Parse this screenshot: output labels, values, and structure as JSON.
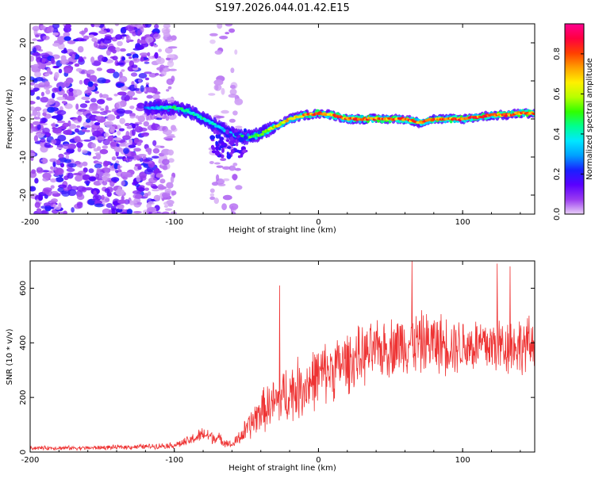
{
  "title": "S197.2026.044.01.42.E15",
  "chart_data": [
    {
      "type": "heatmap",
      "name": "spectrogram",
      "xlabel": "Height of straight line (km)",
      "ylabel": "Frequency (Hz)",
      "xlim": [
        -200,
        150
      ],
      "ylim": [
        -25,
        25
      ],
      "xticks": [
        -200,
        -100,
        0,
        100
      ],
      "yticks": [
        -20,
        -10,
        0,
        10,
        20
      ],
      "colorbar": {
        "label": "Normalized spectral amplitude",
        "range": [
          0,
          0.95
        ],
        "ticks": [
          0.0,
          0.2,
          0.4,
          0.6,
          0.8
        ],
        "colors": [
          "#e9d0f7",
          "#9a3bf0",
          "#5a00ff",
          "#1a20ff",
          "#00a0ff",
          "#00e8ff",
          "#00ff90",
          "#30ff00",
          "#b8ff00",
          "#fff000",
          "#ffa000",
          "#ff4000",
          "#ff0040",
          "#ff0090"
        ]
      },
      "ridge": {
        "x": [
          -120,
          -110,
          -100,
          -90,
          -80,
          -70,
          -60,
          -50,
          -40,
          -30,
          -20,
          -10,
          0,
          10,
          20,
          30,
          40,
          50,
          60,
          70,
          80,
          90,
          100,
          110,
          120,
          130,
          140,
          150
        ],
        "freq": [
          3,
          3,
          3,
          2,
          0,
          -2,
          -4,
          -5,
          -4,
          -2,
          0,
          1,
          1.5,
          1,
          0,
          0,
          0,
          0,
          0,
          -1,
          0,
          0,
          0,
          0.5,
          1,
          1,
          1.5,
          1.5
        ],
        "amp": [
          0.3,
          0.4,
          0.5,
          0.45,
          0.45,
          0.4,
          0.4,
          0.55,
          0.6,
          0.7,
          0.75,
          0.8,
          0.85,
          0.85,
          0.85,
          0.85,
          0.85,
          0.85,
          0.85,
          0.85,
          0.85,
          0.85,
          0.85,
          0.85,
          0.85,
          0.85,
          0.85,
          0.85
        ]
      },
      "noise_regions": [
        {
          "from": -200,
          "to": -110,
          "density": "high"
        },
        {
          "from": -110,
          "to": -100,
          "density": "medium"
        },
        {
          "from": -75,
          "to": -55,
          "density": "low"
        }
      ]
    },
    {
      "type": "line",
      "name": "snr",
      "xlabel": "Height of straight line (km)",
      "ylabel": "SNR (10 * v/v)",
      "xlim": [
        -200,
        150
      ],
      "ylim": [
        0,
        700
      ],
      "xticks": [
        -200,
        -100,
        0,
        100
      ],
      "yticks": [
        0,
        200,
        400,
        600
      ],
      "color": "#ee3333",
      "trend": {
        "x": [
          -200,
          -160,
          -120,
          -100,
          -90,
          -80,
          -70,
          -60,
          -50,
          -40,
          -30,
          -20,
          -10,
          0,
          20,
          40,
          60,
          80,
          100,
          120,
          150
        ],
        "mean": [
          15,
          15,
          20,
          25,
          40,
          65,
          50,
          25,
          80,
          150,
          180,
          220,
          240,
          280,
          330,
          370,
          400,
          400,
          390,
          390,
          390
        ],
        "amplitude": [
          8,
          8,
          10,
          12,
          20,
          30,
          25,
          12,
          50,
          80,
          100,
          120,
          120,
          120,
          120,
          110,
          120,
          120,
          110,
          120,
          110
        ]
      },
      "peaks": [
        {
          "x": -27,
          "y": 610
        },
        {
          "x": 65,
          "y": 700
        },
        {
          "x": 124,
          "y": 690
        },
        {
          "x": 133,
          "y": 680
        }
      ]
    }
  ]
}
